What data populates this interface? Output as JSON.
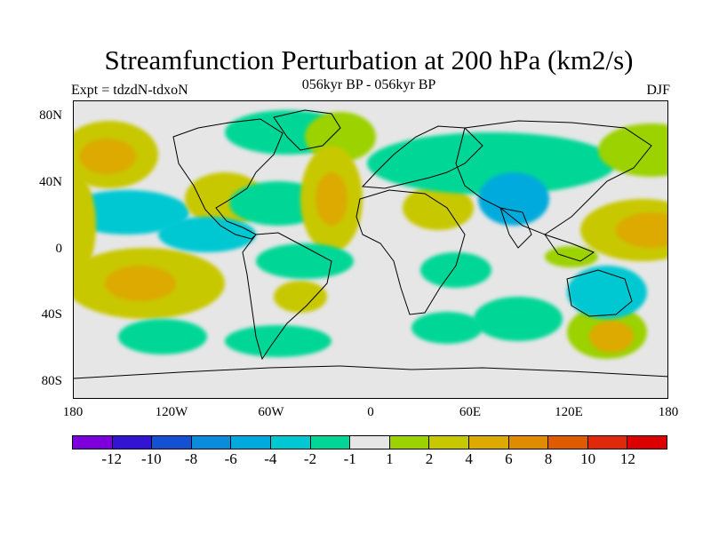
{
  "title": "Streamfunction Perturbation at 200 hPa (km2/s)",
  "subtitle": "056kyr BP - 056kyr BP",
  "experiment": "Expt = tdzdN-tdxoN",
  "season": "DJF",
  "map": {
    "lat_labels": [
      "80N",
      "40N",
      "0",
      "40S",
      "80S"
    ],
    "lon_labels": [
      "180",
      "120W",
      "60W",
      "0",
      "60E",
      "120E",
      "180"
    ],
    "colors": {
      "background": "#e6e6e6",
      "neg_weak": "#00d796",
      "neg_mid": "#00c8d2",
      "neg_strong": "#00aadc",
      "pos_weak": "#9bd200",
      "pos_mid": "#c8c800",
      "pos_strong": "#dcaa00",
      "pos_max": "#e08c00"
    }
  },
  "colorbar": {
    "labels": [
      "-12",
      "-10",
      "-8",
      "-6",
      "-4",
      "-2",
      "-1",
      "1",
      "2",
      "4",
      "6",
      "8",
      "10",
      "12"
    ],
    "colors": [
      "#7d00dc",
      "#3214d2",
      "#1450d2",
      "#0a8cdc",
      "#00aadc",
      "#00c8d2",
      "#00d796",
      "#e6e6e6",
      "#9bd200",
      "#c8c800",
      "#dcaa00",
      "#e08c00",
      "#e05a00",
      "#e0280a",
      "#dc0000"
    ]
  }
}
